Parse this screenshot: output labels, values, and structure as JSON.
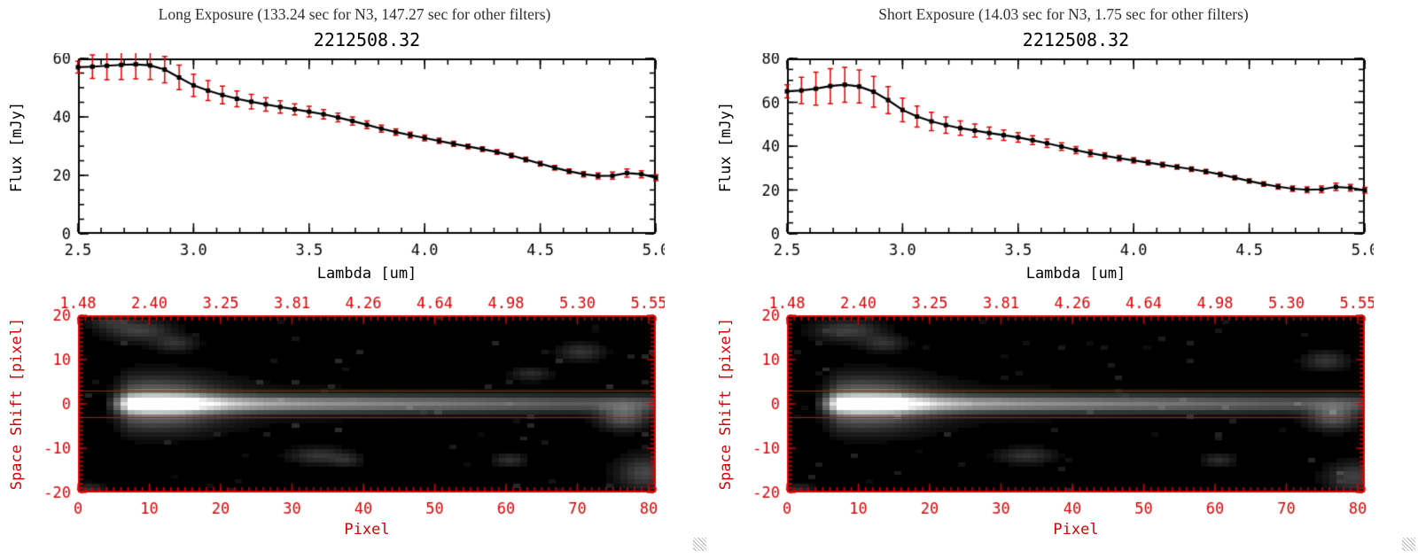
{
  "panels": [
    {
      "title": "Long Exposure (133.24 sec for N3, 147.27 sec for other filters)",
      "object_id": "2212508.32"
    },
    {
      "title": "Short Exposure (14.03 sec for N3, 1.75 sec for other filters)",
      "object_id": "2212508.32"
    }
  ],
  "labels": {
    "flux_axis": "Flux [mJy]",
    "lambda_axis": "Lambda [um]",
    "space_axis": "Space Shift [pixel]",
    "pixel_axis": "Pixel"
  },
  "colors": {
    "axis_red": "#dd0000",
    "data_black": "#000000",
    "title_gray": "#2e2e2e"
  },
  "chart_data": [
    {
      "type": "line",
      "title": "2212508.32",
      "subtitle": "Long Exposure (133.24 sec for N3, 147.27 sec for other filters)",
      "xlabel": "Lambda [um]",
      "ylabel": "Flux [mJy]",
      "xlim": [
        2.5,
        5.0
      ],
      "ylim": [
        0,
        60
      ],
      "xticks": [
        2.5,
        3.0,
        3.5,
        4.0,
        4.5,
        5.0
      ],
      "xtick_labels": [
        "2.5",
        "3.0",
        "3.5",
        "4.0",
        "4.5",
        "5.0"
      ],
      "xminor": 0.1,
      "yticks": [
        0,
        20,
        40,
        60
      ],
      "ytick_labels": [
        "0",
        "20",
        "40",
        "60"
      ],
      "yminor": 5,
      "line_color": "#000000",
      "error_color": "#dd0000",
      "marker": "square",
      "x": [
        2.5,
        2.5625,
        2.625,
        2.6875,
        2.75,
        2.8125,
        2.875,
        2.9375,
        3.0,
        3.0625,
        3.125,
        3.1875,
        3.25,
        3.3125,
        3.375,
        3.4375,
        3.5,
        3.5625,
        3.625,
        3.6875,
        3.75,
        3.8125,
        3.875,
        3.9375,
        4.0,
        4.0625,
        4.125,
        4.1875,
        4.25,
        4.3125,
        4.375,
        4.4375,
        4.5,
        4.5625,
        4.625,
        4.6875,
        4.75,
        4.8125,
        4.875,
        4.9375,
        5.0
      ],
      "y": [
        57.0,
        57.2,
        57.5,
        57.8,
        58.0,
        57.6,
        56.2,
        53.5,
        50.8,
        49.0,
        47.5,
        46.2,
        45.2,
        44.3,
        43.4,
        42.6,
        41.8,
        40.9,
        39.8,
        38.6,
        37.3,
        36.0,
        34.8,
        33.8,
        32.8,
        31.8,
        30.8,
        29.9,
        29.0,
        28.0,
        26.8,
        25.4,
        24.0,
        22.6,
        21.4,
        20.4,
        19.8,
        19.9,
        20.8,
        20.4,
        19.2
      ],
      "yerr": [
        2.0,
        4.0,
        4.8,
        5.0,
        5.0,
        4.8,
        4.5,
        4.2,
        3.8,
        3.4,
        3.0,
        2.7,
        2.5,
        2.3,
        2.1,
        1.9,
        1.8,
        1.6,
        1.5,
        1.4,
        1.3,
        1.2,
        1.1,
        1.0,
        1.0,
        0.9,
        0.9,
        0.8,
        0.8,
        0.8,
        0.8,
        0.8,
        0.8,
        0.8,
        0.8,
        0.9,
        1.0,
        1.2,
        1.4,
        1.2,
        1.0
      ]
    },
    {
      "type": "heatmap",
      "xlabel": "Pixel",
      "ylabel": "Space Shift [pixel]",
      "xlim": [
        0,
        81
      ],
      "ylim": [
        -20,
        20
      ],
      "nx": 81,
      "ny": 41,
      "xticks": [
        0,
        10,
        20,
        30,
        40,
        50,
        60,
        70,
        80
      ],
      "xtick_labels": [
        "0",
        "10",
        "20",
        "30",
        "40",
        "50",
        "60",
        "70",
        "80"
      ],
      "top_axis_labels": [
        "1.48",
        "2.40",
        "3.25",
        "3.81",
        "4.26",
        "4.64",
        "4.98",
        "5.30",
        "5.55"
      ],
      "xminor": 1,
      "yticks": [
        20,
        10,
        0,
        -10,
        -20
      ],
      "ytick_labels": [
        "20",
        "10",
        "0",
        "-10",
        "-20"
      ],
      "yminor": 1,
      "axis_color": "#dd0000",
      "colormap": "gray",
      "aperture_lines_y": [
        3,
        -3
      ],
      "seed": 1,
      "streak": {
        "y_center": 0,
        "core_sigma": 1.3,
        "halo_sigma": 3.6,
        "profile_x": [
          0,
          3,
          4,
          5,
          6,
          7,
          9,
          14,
          17,
          21,
          26,
          32,
          40,
          50,
          60,
          68,
          72,
          76,
          79,
          81
        ],
        "profile_a": [
          0,
          0,
          0.1,
          0.3,
          0.6,
          0.9,
          1.0,
          1.0,
          0.85,
          0.68,
          0.58,
          0.52,
          0.46,
          0.4,
          0.34,
          0.29,
          0.28,
          0.3,
          0.26,
          0.24
        ]
      },
      "blobs": [
        {
          "x": 8,
          "y": 17,
          "sx": 3,
          "sy": 1.6,
          "a": 0.2
        },
        {
          "x": 13,
          "y": 14,
          "sx": 2,
          "sy": 1.2,
          "a": 0.15
        },
        {
          "x": 4,
          "y": 19,
          "sx": 2,
          "sy": 1,
          "a": 0.13
        },
        {
          "x": 33,
          "y": -12,
          "sx": 2.5,
          "sy": 1.2,
          "a": 0.16
        },
        {
          "x": 37,
          "y": -13,
          "sx": 1.5,
          "sy": 1,
          "a": 0.12
        },
        {
          "x": 60,
          "y": -13,
          "sx": 1.5,
          "sy": 1,
          "a": 0.14
        },
        {
          "x": 63,
          "y": 7,
          "sx": 1.8,
          "sy": 1,
          "a": 0.12
        },
        {
          "x": 70,
          "y": 12,
          "sx": 2,
          "sy": 1.3,
          "a": 0.15
        },
        {
          "x": 76,
          "y": -3,
          "sx": 2.2,
          "sy": 1.8,
          "a": 0.3
        },
        {
          "x": 79,
          "y": -16,
          "sx": 2.5,
          "sy": 2.5,
          "a": 0.22
        },
        {
          "x": 1,
          "y": -20,
          "sx": 1.5,
          "sy": 1,
          "a": 0.15
        }
      ]
    },
    {
      "type": "line",
      "title": "2212508.32",
      "subtitle": "Short Exposure (14.03 sec for N3, 1.75 sec for other filters)",
      "xlabel": "Lambda [um]",
      "ylabel": "Flux [mJy]",
      "xlim": [
        2.5,
        5.0
      ],
      "ylim": [
        0,
        80
      ],
      "xticks": [
        2.5,
        3.0,
        3.5,
        4.0,
        4.5,
        5.0
      ],
      "xtick_labels": [
        "2.5",
        "3.0",
        "3.5",
        "4.0",
        "4.5",
        "5.0"
      ],
      "xminor": 0.1,
      "yticks": [
        0,
        20,
        40,
        60,
        80
      ],
      "ytick_labels": [
        "0",
        "20",
        "40",
        "60",
        "80"
      ],
      "yminor": 5,
      "line_color": "#000000",
      "error_color": "#dd0000",
      "marker": "square",
      "x": [
        2.5,
        2.5625,
        2.625,
        2.6875,
        2.75,
        2.8125,
        2.875,
        2.9375,
        3.0,
        3.0625,
        3.125,
        3.1875,
        3.25,
        3.3125,
        3.375,
        3.4375,
        3.5,
        3.5625,
        3.625,
        3.6875,
        3.75,
        3.8125,
        3.875,
        3.9375,
        4.0,
        4.0625,
        4.125,
        4.1875,
        4.25,
        4.3125,
        4.375,
        4.4375,
        4.5,
        4.5625,
        4.625,
        4.6875,
        4.75,
        4.8125,
        4.875,
        4.9375,
        5.0
      ],
      "y": [
        65.0,
        65.4,
        66.2,
        67.4,
        68.0,
        67.2,
        64.8,
        61.0,
        56.5,
        53.5,
        51.3,
        49.6,
        48.2,
        47.1,
        46.0,
        45.0,
        44.0,
        42.7,
        41.3,
        39.8,
        38.2,
        36.8,
        35.6,
        34.5,
        33.5,
        32.5,
        31.5,
        30.5,
        29.5,
        28.4,
        27.1,
        25.6,
        24.1,
        22.7,
        21.5,
        20.6,
        20.1,
        20.3,
        21.4,
        21.0,
        19.9
      ],
      "yerr": [
        3.0,
        6.0,
        7.5,
        8.0,
        8.0,
        7.5,
        7.0,
        6.2,
        5.4,
        4.8,
        4.2,
        3.7,
        3.3,
        3.0,
        2.7,
        2.4,
        2.2,
        2.0,
        1.9,
        1.7,
        1.6,
        1.5,
        1.4,
        1.3,
        1.2,
        1.1,
        1.1,
        1.0,
        1.0,
        1.0,
        1.0,
        1.0,
        1.0,
        1.0,
        1.1,
        1.2,
        1.3,
        1.5,
        1.7,
        1.5,
        1.3
      ]
    },
    {
      "type": "heatmap",
      "xlabel": "Pixel",
      "ylabel": "Space Shift [pixel]",
      "xlim": [
        0,
        81
      ],
      "ylim": [
        -20,
        20
      ],
      "nx": 81,
      "ny": 41,
      "xticks": [
        0,
        10,
        20,
        30,
        40,
        50,
        60,
        70,
        80
      ],
      "xtick_labels": [
        "0",
        "10",
        "20",
        "30",
        "40",
        "50",
        "60",
        "70",
        "80"
      ],
      "top_axis_labels": [
        "1.48",
        "2.40",
        "3.25",
        "3.81",
        "4.26",
        "4.64",
        "4.98",
        "5.30",
        "5.55"
      ],
      "xminor": 1,
      "yticks": [
        20,
        10,
        0,
        -10,
        -20
      ],
      "ytick_labels": [
        "20",
        "10",
        "0",
        "-10",
        "-20"
      ],
      "yminor": 1,
      "axis_color": "#dd0000",
      "colormap": "gray",
      "aperture_lines_y": [
        3,
        -3
      ],
      "seed": 2,
      "streak": {
        "y_center": 0,
        "core_sigma": 1.3,
        "halo_sigma": 3.6,
        "profile_x": [
          0,
          3,
          4,
          5,
          6,
          7,
          9,
          14,
          17,
          21,
          26,
          32,
          40,
          50,
          60,
          68,
          72,
          76,
          79,
          81
        ],
        "profile_a": [
          0,
          0,
          0.1,
          0.3,
          0.6,
          0.9,
          1.0,
          1.0,
          0.85,
          0.68,
          0.58,
          0.52,
          0.46,
          0.4,
          0.34,
          0.29,
          0.28,
          0.3,
          0.26,
          0.24
        ]
      },
      "blobs": [
        {
          "x": 8,
          "y": 17,
          "sx": 3,
          "sy": 1.6,
          "a": 0.2
        },
        {
          "x": 13,
          "y": 14,
          "sx": 2,
          "sy": 1.2,
          "a": 0.15
        },
        {
          "x": 33,
          "y": -12,
          "sx": 2.5,
          "sy": 1.2,
          "a": 0.15
        },
        {
          "x": 60,
          "y": -13,
          "sx": 1.5,
          "sy": 1,
          "a": 0.13
        },
        {
          "x": 75,
          "y": 10,
          "sx": 2,
          "sy": 1.4,
          "a": 0.16
        },
        {
          "x": 76,
          "y": -3,
          "sx": 2.2,
          "sy": 1.8,
          "a": 0.3
        },
        {
          "x": 79,
          "y": -17,
          "sx": 2.5,
          "sy": 2.2,
          "a": 0.2
        },
        {
          "x": 1,
          "y": -20,
          "sx": 1.5,
          "sy": 1,
          "a": 0.14
        }
      ]
    }
  ]
}
